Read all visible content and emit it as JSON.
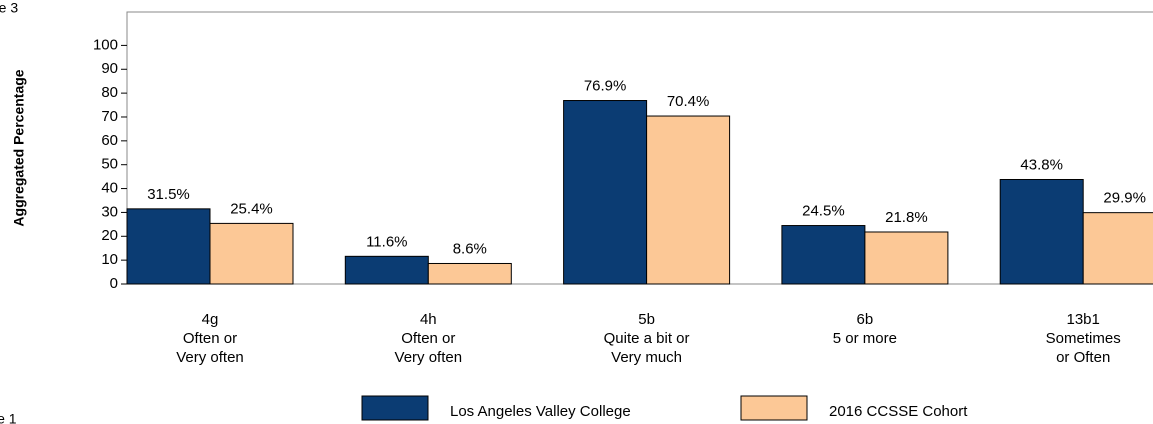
{
  "chart_data": {
    "type": "bar",
    "annotations": [
      "re 3",
      "le 1"
    ],
    "ylabel": "Aggregated Percentage",
    "categories": [
      [
        "4g",
        "Often or",
        "Very often"
      ],
      [
        "4h",
        "Often or",
        "Very often"
      ],
      [
        "5b",
        "Quite a bit or",
        "Very much"
      ],
      [
        "6b",
        "5 or more"
      ],
      [
        "13b1",
        "Sometimes",
        "or Often"
      ]
    ],
    "series": [
      {
        "name": "Los Angeles Valley College",
        "color": "#0b3c73",
        "values": [
          31.5,
          11.6,
          76.9,
          24.5,
          43.8
        ],
        "value_labels": [
          "31.5%",
          "11.6%",
          "76.9%",
          "24.5%",
          "43.8%"
        ]
      },
      {
        "name": "2016 CCSSE Cohort",
        "color": "#fcc896",
        "values": [
          25.4,
          8.6,
          70.4,
          21.8,
          29.9
        ],
        "value_labels": [
          "25.4%",
          "8.6%",
          "70.4%",
          "21.8%",
          "29.9%"
        ]
      }
    ],
    "ylim": [
      0,
      114
    ],
    "yticks": [
      0,
      10,
      20,
      30,
      40,
      50,
      60,
      70,
      80,
      90,
      100
    ],
    "legend": "bottom"
  }
}
